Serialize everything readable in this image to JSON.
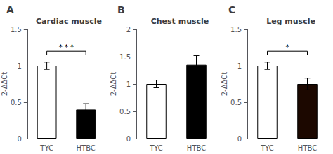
{
  "chart_data": [
    {
      "type": "bar",
      "title": "Cardiac muscle",
      "categories": [
        "TYC",
        "HTBC"
      ],
      "values": [
        1.0,
        0.4
      ],
      "errors": [
        0.05,
        0.08
      ],
      "colors": [
        "white",
        "black"
      ],
      "ylabel": "2-ΔΔCt",
      "ylim": [
        0,
        1.5
      ],
      "yticks": [
        0,
        0.5,
        1,
        1.5
      ],
      "grid": false,
      "annotations": [
        {
          "text": "A"
        },
        {
          "text": "* * *",
          "x": [
            "TYC",
            "HTBC"
          ],
          "y": 1.2
        }
      ]
    },
    {
      "type": "bar",
      "title": "Chest muscle",
      "categories": [
        "TYC",
        "HTBC"
      ],
      "values": [
        1.0,
        1.35
      ],
      "errors": [
        0.07,
        0.17
      ],
      "colors": [
        "white",
        "black"
      ],
      "ylabel": "2-ΔΔCt",
      "ylim": [
        0,
        2.0
      ],
      "yticks": [
        0,
        0.5,
        1,
        1.5,
        2
      ],
      "grid": false,
      "annotations": [
        {
          "text": "B"
        }
      ]
    },
    {
      "type": "bar",
      "title": "Leg muscle",
      "categories": [
        "TYC",
        "HTBC"
      ],
      "values": [
        1.0,
        0.75
      ],
      "errors": [
        0.05,
        0.08
      ],
      "colors": [
        "white",
        "#1c0800"
      ],
      "ylabel": "2-ΔΔCt",
      "ylim": [
        0,
        1.5
      ],
      "yticks": [
        0,
        0.5,
        1,
        1.5
      ],
      "grid": false,
      "annotations": [
        {
          "text": "C"
        },
        {
          "text": "*",
          "x": [
            "TYC",
            "HTBC"
          ],
          "y": 1.2
        }
      ]
    }
  ]
}
